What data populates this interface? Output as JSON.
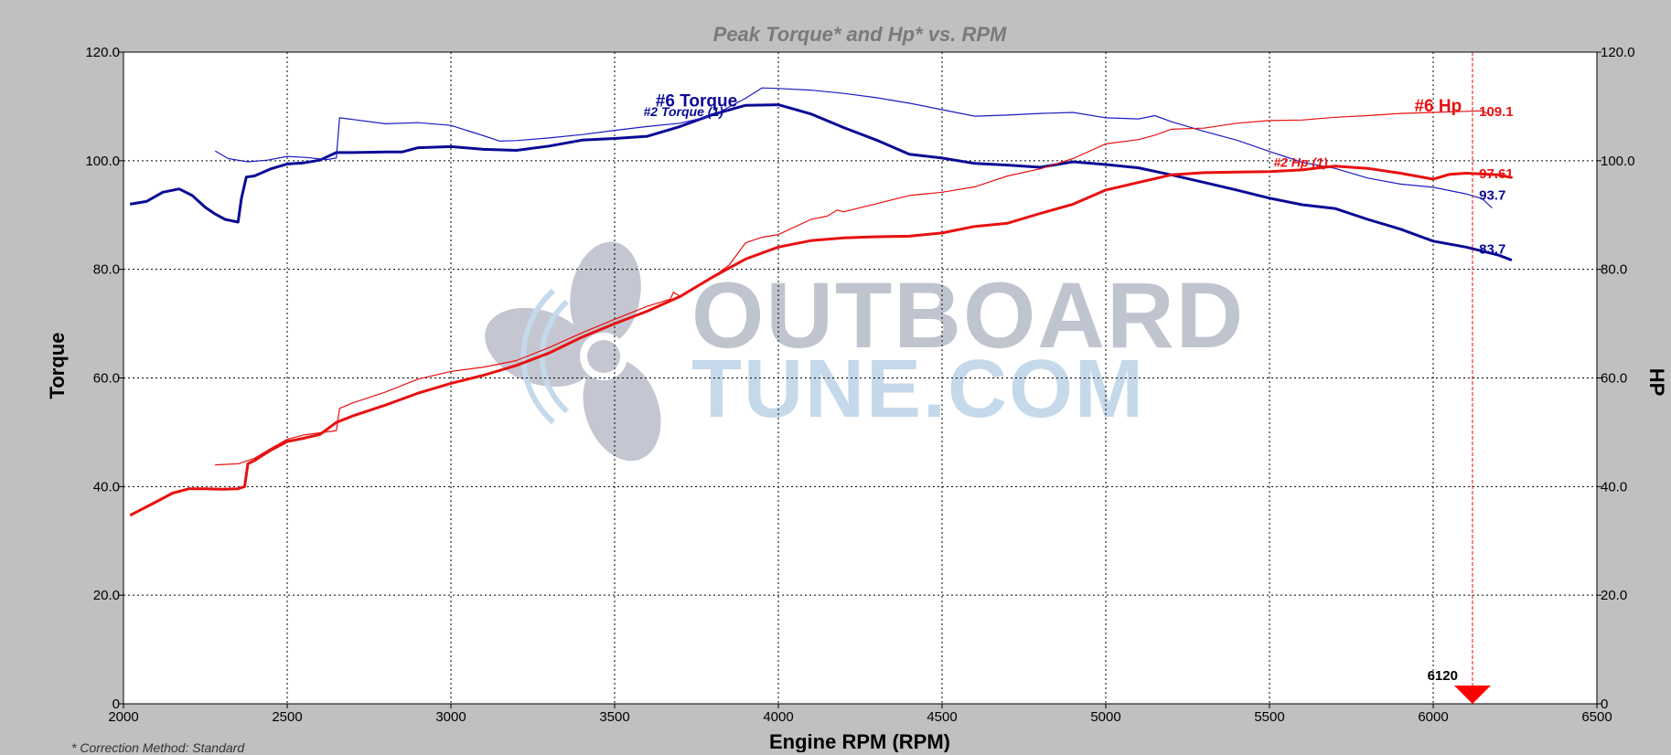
{
  "chart_data": {
    "type": "line",
    "title": "Peak Torque* and Hp* vs. RPM",
    "xlabel": "Engine RPM (RPM)",
    "ylabel_left": "Torque",
    "ylabel_right": "HP",
    "xlim": [
      2000,
      6500
    ],
    "ylim_left": [
      0,
      120
    ],
    "ylim_right": [
      0,
      120
    ],
    "x_ticks": [
      "2000",
      "2500",
      "3000",
      "3500",
      "4000",
      "4500",
      "5000",
      "5500",
      "6000",
      "6500"
    ],
    "y_ticks_left": [
      "0",
      "20.0",
      "40.0",
      "60.0",
      "80.0",
      "100.0",
      "120.0"
    ],
    "y_ticks_right": [
      "0",
      "20.0",
      "40.0",
      "60.0",
      "80.0",
      "100.0",
      "120.0"
    ],
    "grid": true,
    "cursor": {
      "x": 6120,
      "label": "6120"
    },
    "footnote": "* Correction Method: Standard",
    "series": [
      {
        "name": "#6 Torque",
        "color": "#0a0a96",
        "width": 3,
        "x": [
          2020,
          2070,
          2120,
          2170,
          2210,
          2250,
          2280,
          2310,
          2350,
          2360,
          2375,
          2400,
          2450,
          2500,
          2550,
          2600,
          2650,
          2700,
          2800,
          2850,
          2900,
          3000,
          3100,
          3200,
          3300,
          3400,
          3500,
          3600,
          3700,
          3800,
          3900,
          4000,
          4100,
          4200,
          4300,
          4400,
          4500,
          4600,
          4700,
          4800,
          4900,
          5000,
          5100,
          5200,
          5300,
          5400,
          5500,
          5600,
          5700,
          5800,
          5900,
          6000,
          6100,
          6200,
          6240
        ],
        "values": [
          92,
          92.5,
          94.2,
          94.8,
          93.6,
          91.4,
          90.2,
          89.2,
          88.7,
          93.0,
          97.0,
          97.2,
          98.5,
          99.4,
          99.6,
          100.1,
          101.5,
          101.5,
          101.6,
          101.6,
          102.4,
          102.6,
          102.1,
          101.9,
          102.7,
          103.8,
          104.1,
          104.5,
          106.3,
          108.5,
          110.2,
          110.3,
          108.6,
          106.1,
          103.8,
          101.2,
          100.5,
          99.5,
          99.2,
          98.8,
          99.8,
          99.3,
          98.7,
          97.4,
          96.0,
          94.6,
          93.1,
          91.9,
          91.2,
          89.2,
          87.4,
          85.2,
          84.1,
          82.6,
          81.7
        ]
      },
      {
        "name": "#2 Torque (1)",
        "color": "#1c1cc2",
        "width": 1.2,
        "x": [
          2280,
          2320,
          2380,
          2440,
          2500,
          2560,
          2620,
          2650,
          2660,
          2700,
          2800,
          2900,
          3000,
          3100,
          3150,
          3200,
          3300,
          3400,
          3500,
          3600,
          3700,
          3800,
          3900,
          3950,
          4000,
          4100,
          4200,
          4300,
          4400,
          4500,
          4600,
          4700,
          4800,
          4900,
          5000,
          5100,
          5150,
          5200,
          5300,
          5400,
          5500,
          5600,
          5700,
          5800,
          5900,
          6000,
          6100,
          6150,
          6180
        ],
        "values": [
          101.8,
          100.4,
          99.8,
          100.1,
          100.8,
          100.6,
          100.2,
          100.5,
          107.9,
          107.6,
          106.8,
          107.0,
          106.5,
          104.6,
          103.6,
          103.7,
          104.2,
          104.8,
          105.6,
          106.3,
          106.9,
          108.3,
          111.5,
          113.4,
          113.3,
          113.0,
          112.4,
          111.6,
          110.6,
          109.4,
          108.2,
          108.4,
          108.7,
          108.9,
          107.9,
          107.7,
          108.3,
          107.2,
          105.4,
          103.8,
          101.7,
          99.7,
          98.6,
          96.8,
          95.7,
          95.1,
          93.9,
          93.0,
          91.3
        ]
      },
      {
        "name": "#6 Hp",
        "color": "#e81010",
        "width": 3,
        "x": [
          2020,
          2100,
          2150,
          2200,
          2250,
          2300,
          2350,
          2370,
          2380,
          2400,
          2450,
          2500,
          2550,
          2600,
          2650,
          2700,
          2800,
          2900,
          3000,
          3100,
          3200,
          3300,
          3400,
          3500,
          3600,
          3700,
          3800,
          3900,
          4000,
          4100,
          4200,
          4300,
          4400,
          4500,
          4600,
          4700,
          4800,
          4900,
          5000,
          5100,
          5200,
          5300,
          5400,
          5500,
          5600,
          5650,
          5700,
          5800,
          5900,
          6000,
          6050,
          6100,
          6200,
          6240
        ],
        "values": [
          34.7,
          37.2,
          38.8,
          39.6,
          39.6,
          39.5,
          39.6,
          40.0,
          44.2,
          44.8,
          46.7,
          48.3,
          48.9,
          49.6,
          51.8,
          53.0,
          55.0,
          57.2,
          59.0,
          60.5,
          62.3,
          64.6,
          67.5,
          70.0,
          72.3,
          75.0,
          78.6,
          81.9,
          84.1,
          85.3,
          85.8,
          86.0,
          86.1,
          86.7,
          87.9,
          88.5,
          90.3,
          92.0,
          94.6,
          96.0,
          97.4,
          97.8,
          97.9,
          98.0,
          98.3,
          98.7,
          99.0,
          98.6,
          97.7,
          96.6,
          97.5,
          97.7,
          97.4,
          96.9
        ]
      },
      {
        "name": "#2 Hp (1)",
        "color": "#e81010",
        "width": 1.2,
        "x": [
          2280,
          2350,
          2400,
          2450,
          2500,
          2550,
          2600,
          2650,
          2660,
          2700,
          2800,
          2900,
          3000,
          3100,
          3200,
          3300,
          3400,
          3500,
          3600,
          3670,
          3680,
          3700,
          3800,
          3850,
          3900,
          3950,
          4000,
          4100,
          4150,
          4180,
          4200,
          4300,
          4400,
          4500,
          4600,
          4700,
          4800,
          4900,
          5000,
          5100,
          5150,
          5200,
          5300,
          5400,
          5500,
          5600,
          5700,
          5800,
          5900,
          6000,
          6100,
          6150,
          6180
        ],
        "values": [
          44.0,
          44.2,
          45.2,
          47.0,
          48.7,
          49.5,
          49.9,
          50.3,
          54.4,
          55.4,
          57.4,
          59.8,
          61.2,
          62.0,
          63.2,
          65.6,
          68.3,
          70.8,
          73.2,
          74.5,
          75.8,
          75.0,
          78.6,
          80.8,
          84.9,
          85.9,
          86.4,
          89.2,
          89.8,
          90.9,
          90.6,
          92.1,
          93.6,
          94.2,
          95.2,
          97.2,
          98.5,
          100.4,
          103.1,
          103.9,
          104.7,
          105.8,
          106.0,
          106.9,
          107.4,
          107.5,
          108.0,
          108.3,
          108.7,
          108.9,
          109.1,
          109.2,
          108.2
        ]
      }
    ],
    "series_labels": [
      {
        "text": "#6 Torque",
        "color": "#0a0a96",
        "size": 19,
        "italic": false,
        "x": 3750,
        "y": 110.0
      },
      {
        "text": "#2 Torque (1)",
        "color": "#0a0a96",
        "size": 14,
        "italic": true,
        "x": 3710,
        "y": 108.2
      },
      {
        "text": "#6 Hp",
        "color": "#e81010",
        "size": 19,
        "italic": false,
        "x": 6015,
        "y": 109.1
      },
      {
        "text": "#2 Hp (1)",
        "color": "#e81010",
        "size": 14,
        "italic": true,
        "x": 5595,
        "y": 98.9
      }
    ],
    "value_labels": [
      {
        "text": "109.1",
        "color": "#e81010",
        "x": 6140,
        "y": 109.1
      },
      {
        "text": "97.61",
        "color": "#e81010",
        "x": 6140,
        "y": 97.6
      },
      {
        "text": "93.7",
        "color": "#0a0a96",
        "x": 6140,
        "y": 93.7
      },
      {
        "text": "83.7",
        "color": "#0a0a96",
        "x": 6140,
        "y": 83.7
      }
    ]
  },
  "watermark": {
    "line1": "OUTBOARD",
    "line2": "TUNE.COM",
    "color1": "#c0c4cf",
    "color2": "#c5d9ea"
  }
}
